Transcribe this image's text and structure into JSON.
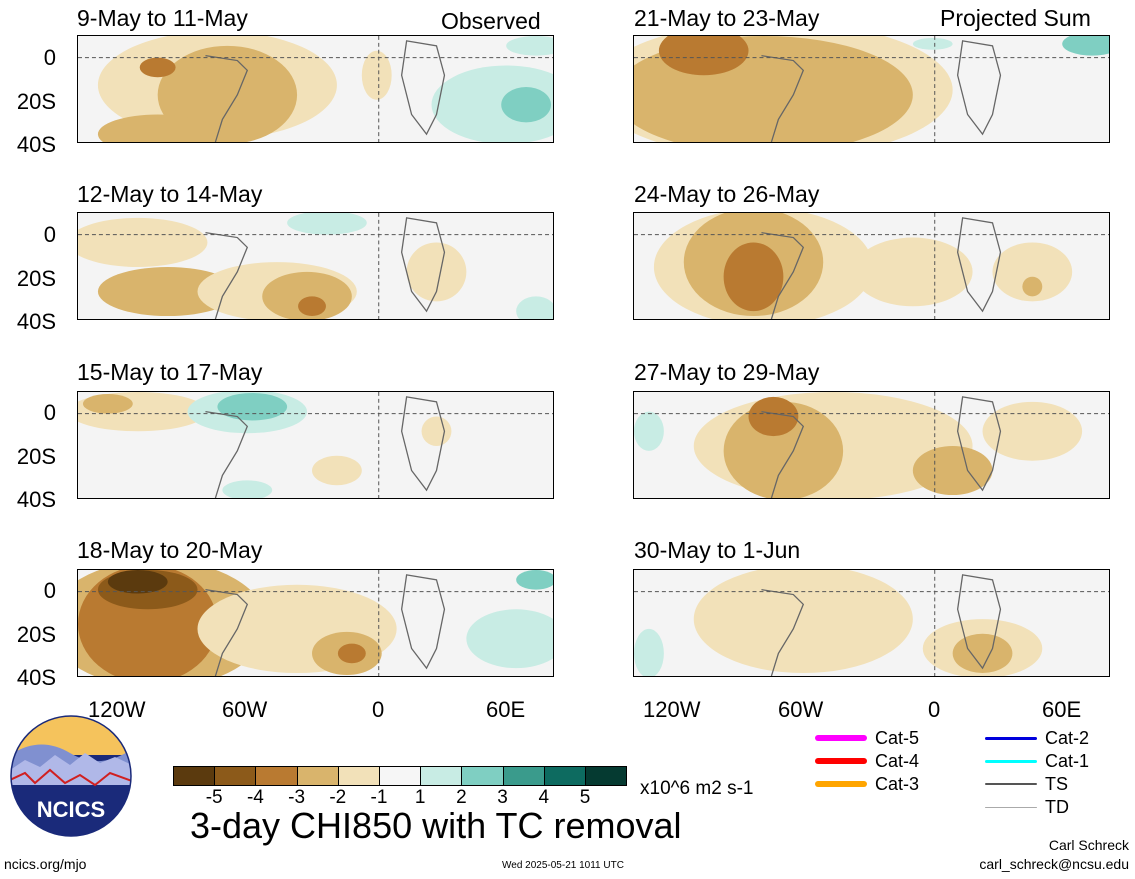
{
  "panels": [
    {
      "title": "9-May to 11-May",
      "tag": "Observed"
    },
    {
      "title": "12-May to 14-May",
      "tag": ""
    },
    {
      "title": "15-May to 17-May",
      "tag": ""
    },
    {
      "title": "18-May to 20-May",
      "tag": ""
    },
    {
      "title": "21-May to 23-May",
      "tag": "Projected Sum"
    },
    {
      "title": "24-May to 26-May",
      "tag": ""
    },
    {
      "title": "27-May to 29-May",
      "tag": ""
    },
    {
      "title": "30-May to 1-Jun",
      "tag": ""
    }
  ],
  "lat_labels": [
    "0",
    "20S",
    "40S"
  ],
  "lon_labels": [
    "120W",
    "60W",
    "0",
    "60E"
  ],
  "colorbar": {
    "labels": [
      "-5",
      "-4",
      "-3",
      "-2",
      "-1",
      "1",
      "2",
      "3",
      "4",
      "5"
    ],
    "colors": [
      "#5b3a0e",
      "#8c5a1a",
      "#b97a31",
      "#d9b46c",
      "#f2e1b9",
      "#f6f6f6",
      "#c8ece4",
      "#7fcfc2",
      "#3a9b8c",
      "#0d6b60",
      "#053a31"
    ],
    "units": "x10^6 m2 s-1"
  },
  "legend": [
    {
      "label": "Cat-5",
      "color": "#ff00ff",
      "width": 6
    },
    {
      "label": "Cat-4",
      "color": "#ff0000",
      "width": 6
    },
    {
      "label": "Cat-3",
      "color": "#ffa500",
      "width": 6
    },
    {
      "label": "Cat-2",
      "color": "#0000dd",
      "width": 3
    },
    {
      "label": "Cat-1",
      "color": "#00ffff",
      "width": 3
    },
    {
      "label": "TS",
      "color": "#555555",
      "width": 2
    },
    {
      "label": "TD",
      "color": "#aaaaaa",
      "width": 1
    }
  ],
  "logo_text": "NCICS",
  "main_title": "3-day CHI850 with TC removal",
  "footer": {
    "site": "ncics.org/mjo",
    "timestamp": "Wed 2025-05-21 1011 UTC",
    "author": "Carl Schreck",
    "email": "carl_schreck@ncsu.edu"
  }
}
